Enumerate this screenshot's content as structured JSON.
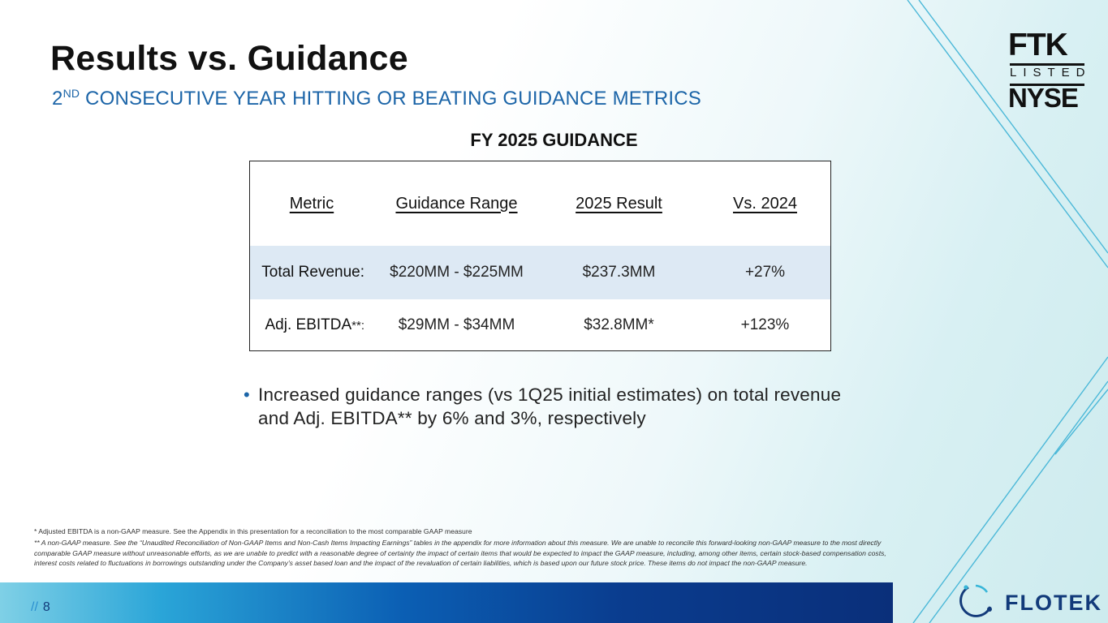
{
  "header": {
    "title": "Results vs. Guidance",
    "subtitle_ordinal": "2",
    "subtitle_sup": "ND",
    "subtitle_rest": " CONSECUTIVE YEAR HITTING OR BEATING GUIDANCE METRICS"
  },
  "listing_badge": {
    "ticker": "FTK",
    "listed": "LISTED",
    "exchange": "NYSE"
  },
  "guidance_table": {
    "title": "FY 2025 GUIDANCE",
    "headers": [
      "Metric",
      "Guidance Range",
      "2025 Result",
      "Vs. 2024"
    ],
    "rows": [
      {
        "metric": "Total Revenue:",
        "metric_suffix": "",
        "range": "$220MM - $225MM",
        "result": "$237.3MM",
        "vs": "+27%"
      },
      {
        "metric": "Adj. EBITDA",
        "metric_suffix": "**:",
        "range": "$29MM - $34MM",
        "result": "$32.8MM*",
        "vs": "+123%"
      }
    ]
  },
  "bullet": {
    "marker": "•",
    "text": "Increased guidance ranges (vs 1Q25 initial estimates) on total revenue and Adj. EBITDA** by 6% and 3%, respectively"
  },
  "footnotes": {
    "note1": "*    Adjusted EBITDA is a non-GAAP measure.  See the Appendix in this presentation for a reconciliation to the most comparable GAAP measure",
    "note2": "** A non-GAAP measure. See the “Unaudited Reconciliation of Non-GAAP Items and Non-Cash Items Impacting Earnings” tables  in the appendix for more information about this measure. We are unable to reconcile this forward-looking non-GAAP measure to the most directly comparable GAAP measure without unreasonable efforts, as we are unable to predict with a reasonable degree of certainty the impact of certain items that would be expected to impact the GAAP measure, including, among other items, certain stock-based compensation costs, interest costs related to fluctuations in borrowings outstanding under the Company’s asset based loan and the impact of the revaluation of certain liabilities, which is based upon our future stock price. These items do not impact the non-GAAP measure."
  },
  "footer": {
    "slashes": "//",
    "page_number": "8",
    "brand": "FLOTEK"
  },
  "colors": {
    "accent": "#1c65a8",
    "navy": "#123a7a",
    "row_highlight": "#dde9f4"
  },
  "icons": [
    "flotek-ring-logo"
  ]
}
